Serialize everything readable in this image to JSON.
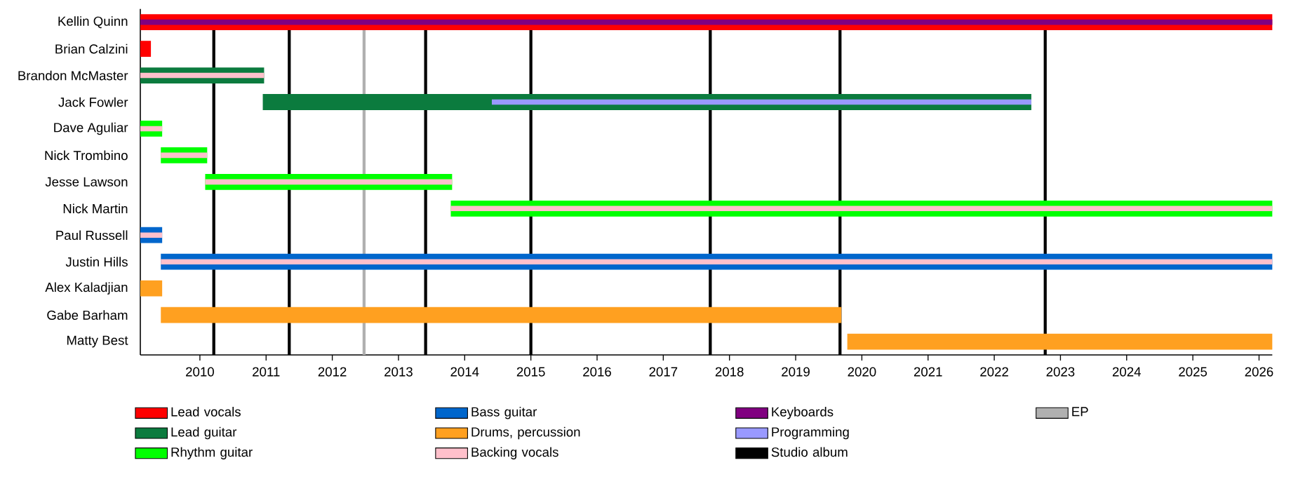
{
  "chart_data": {
    "type": "bar",
    "orientation": "horizontal",
    "categories": [
      "Kellin Quinn",
      "Brian Calzini",
      "Brandon McMaster",
      "Jack Fowler",
      "Dave Aguliar",
      "Nick Trombino",
      "Jesse Lawson",
      "Nick Martin",
      "Paul Russell",
      "Justin Hills",
      "Alex Kaladjian",
      "Gabe Barham",
      "Matty Best"
    ],
    "series": [
      {
        "name": "Lead vocals",
        "color": "#ff0000",
        "base": [
          2009.1,
          2009.1,
          null,
          null,
          null,
          null,
          null,
          null,
          null,
          null,
          null,
          null,
          null
        ],
        "values": [
          17.1,
          0.16,
          null,
          null,
          null,
          null,
          null,
          null,
          null,
          null,
          null,
          null,
          null
        ]
      },
      {
        "name": "Lead guitar",
        "color": "#0b7b3e",
        "base": [
          null,
          null,
          2009.1,
          2010.95,
          null,
          null,
          null,
          null,
          null,
          null,
          null,
          null,
          null
        ],
        "values": [
          null,
          null,
          1.87,
          11.61,
          null,
          null,
          null,
          null,
          null,
          null,
          null,
          null,
          null
        ]
      },
      {
        "name": "Rhythm guitar",
        "color": "#00ff00",
        "base": [
          null,
          null,
          null,
          null,
          2009.1,
          2009.41,
          2010.08,
          2013.79,
          null,
          null,
          null,
          null,
          null
        ],
        "values": [
          null,
          null,
          null,
          null,
          0.33,
          0.7,
          3.73,
          12.41,
          null,
          null,
          null,
          null,
          null
        ]
      },
      {
        "name": "Bass guitar",
        "color": "#0066cc",
        "base": [
          null,
          null,
          null,
          null,
          null,
          null,
          null,
          null,
          2009.1,
          2009.41,
          null,
          null,
          null
        ],
        "values": [
          null,
          null,
          null,
          null,
          null,
          null,
          null,
          null,
          0.33,
          16.79,
          null,
          null,
          null
        ]
      },
      {
        "name": "Drums, percussion",
        "color": "#ffa020",
        "base": [
          null,
          null,
          null,
          null,
          null,
          null,
          null,
          null,
          null,
          null,
          2009.1,
          2009.41,
          2019.78
        ],
        "values": [
          null,
          null,
          null,
          null,
          null,
          null,
          null,
          null,
          null,
          null,
          0.33,
          10.28,
          6.42
        ]
      },
      {
        "name": "Backing vocals",
        "color": "#ffc0cb",
        "base": [
          null,
          null,
          2009.1,
          null,
          2009.1,
          2009.41,
          2010.08,
          2013.79,
          2009.1,
          2009.41,
          null,
          null,
          null
        ],
        "values": [
          null,
          null,
          1.87,
          null,
          0.33,
          0.7,
          3.73,
          12.41,
          0.33,
          16.79,
          null,
          null,
          null
        ]
      },
      {
        "name": "Keyboards",
        "color": "#800080",
        "base": [
          2009.1,
          null,
          null,
          null,
          null,
          null,
          null,
          null,
          null,
          null,
          null,
          null,
          null
        ],
        "values": [
          17.1,
          null,
          null,
          null,
          null,
          null,
          null,
          null,
          null,
          null,
          null,
          null,
          null
        ]
      },
      {
        "name": "Programming",
        "color": "#9999ff",
        "base": [
          null,
          null,
          null,
          2014.41,
          null,
          null,
          null,
          null,
          null,
          null,
          null,
          null,
          null
        ],
        "values": [
          null,
          null,
          null,
          8.15,
          null,
          null,
          null,
          null,
          null,
          null,
          null,
          null,
          null
        ]
      }
    ],
    "xlim": [
      2009.1,
      2026.2
    ],
    "xticks": [
      2010,
      2011,
      2012,
      2013,
      2014,
      2015,
      2016,
      2017,
      2018,
      2019,
      2020,
      2021,
      2022,
      2023,
      2024,
      2025,
      2026
    ],
    "ref_lines": [
      {
        "axis": "x",
        "value": 2010.21,
        "label": "Studio album",
        "color": "#000000"
      },
      {
        "axis": "x",
        "value": 2011.35,
        "color": "#000000"
      },
      {
        "axis": "x",
        "value": 2013.41,
        "color": "#000000"
      },
      {
        "axis": "x",
        "value": 2015.0,
        "color": "#000000"
      },
      {
        "axis": "x",
        "value": 2017.71,
        "color": "#000000"
      },
      {
        "axis": "x",
        "value": 2019.67,
        "color": "#000000"
      },
      {
        "axis": "x",
        "value": 2022.77,
        "color": "#000000"
      },
      {
        "axis": "x",
        "value": 2012.48,
        "label": "EP",
        "color": "#b0b0b0"
      }
    ],
    "legend": "bottom"
  }
}
